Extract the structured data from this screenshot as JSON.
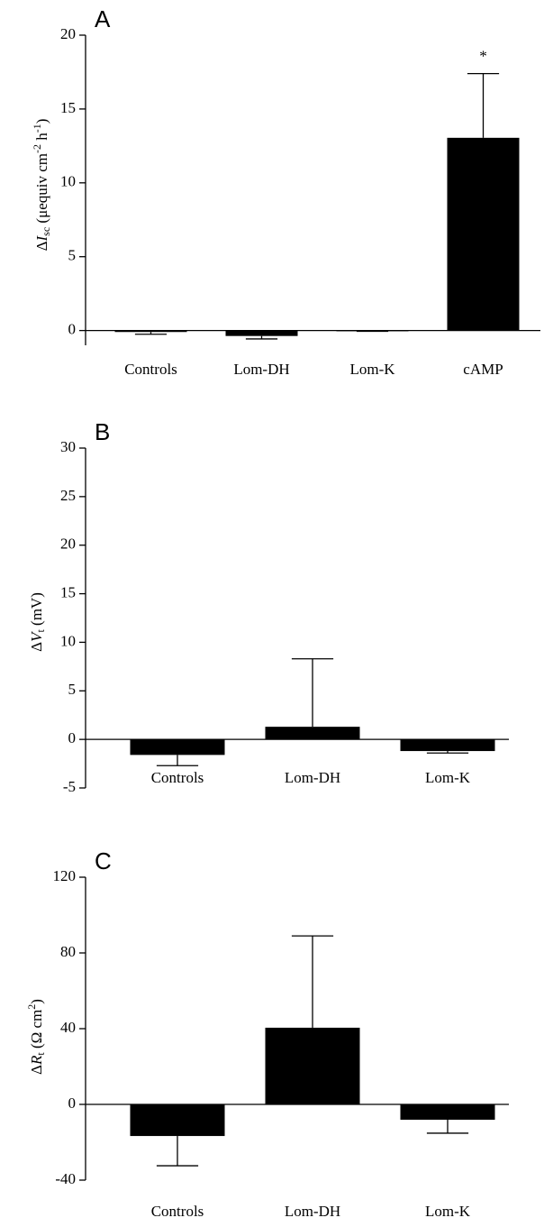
{
  "chart_data": [
    {
      "type": "bar",
      "panel_label": "A",
      "ylabel": [
        "Δ",
        "I",
        "sc",
        " (μequiv cm",
        "-2",
        " h",
        "-1",
        ")"
      ],
      "categories": [
        "Controls",
        "Lom-DH",
        "Lom-K",
        "cAMP"
      ],
      "values": [
        -0.1,
        -0.37,
        -0.05,
        13.05
      ],
      "errors": [
        0.15,
        0.2,
        0.0,
        4.35
      ],
      "annotation": "*",
      "color": "#000000",
      "ylim": [
        -1,
        20
      ],
      "yticks": [
        0,
        5,
        10,
        15,
        20
      ]
    },
    {
      "type": "bar",
      "panel_label": "B",
      "ylabel": [
        "Δ",
        "V",
        "t",
        " (mV)"
      ],
      "categories": [
        "Controls",
        "Lom-DH",
        "Lom-K"
      ],
      "values": [
        -1.6,
        1.3,
        -1.2
      ],
      "errors": [
        1.1,
        7.0,
        0.2
      ],
      "color": "#000000",
      "ylim": [
        -5,
        30
      ],
      "yticks": [
        -5,
        0,
        5,
        10,
        15,
        20,
        25,
        30
      ]
    },
    {
      "type": "bar",
      "panel_label": "C",
      "ylabel": [
        "Δ",
        "R",
        "t",
        " (Ω cm",
        "2",
        ")"
      ],
      "categories": [
        "Controls",
        "Lom-DH",
        "Lom-K"
      ],
      "values": [
        -16.7,
        40.5,
        -8.1
      ],
      "errors": [
        15.7,
        48.5,
        7.1
      ],
      "color": "#000000",
      "ylim": [
        -40,
        120
      ],
      "yticks": [
        -40,
        0,
        40,
        80,
        120
      ]
    }
  ]
}
